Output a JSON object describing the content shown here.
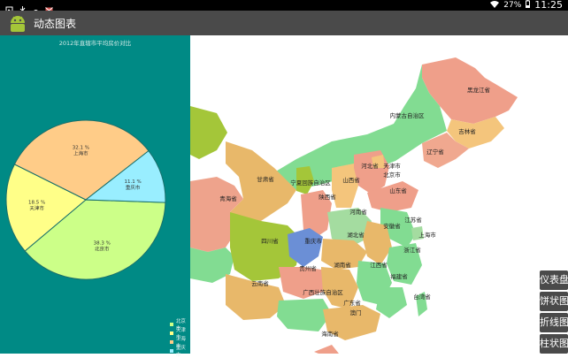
{
  "status_bar": {
    "battery": "27%",
    "time": "11:25",
    "icons": [
      "notification-image-icon",
      "usb-icon",
      "android-debug-icon",
      "mail-icon",
      "wifi-icon",
      "battery-icon"
    ]
  },
  "app_bar": {
    "title": "动态图表",
    "icon": "android-icon"
  },
  "chart_data": {
    "type": "pie",
    "title": "2012年直辖市平均房价对比",
    "slices": [
      {
        "label": "北京市",
        "percent_text": "38.3 %",
        "value": 38.3,
        "color": "#ccff88"
      },
      {
        "label": "天津市",
        "percent_text": "18.5 %",
        "value": 18.5,
        "color": "#ffff88"
      },
      {
        "label": "上海市",
        "percent_text": "32.1 %",
        "value": 32.1,
        "color": "#ffcc88"
      },
      {
        "label": "重庆市",
        "percent_text": "11.1 %",
        "value": 11.1,
        "color": "#99eeff"
      }
    ],
    "legend": [
      {
        "label": "北京市",
        "color": "#ccff88"
      },
      {
        "label": "天津市",
        "color": "#ffff88"
      },
      {
        "label": "上海市",
        "color": "#ffcc88"
      },
      {
        "label": "重庆市",
        "color": "#99eeff"
      }
    ],
    "legend_position": "bottom-right"
  },
  "map": {
    "highlighted_region": "重庆市",
    "labels": [
      "黑龙江省",
      "吉林省",
      "内蒙古自治区",
      "辽宁省",
      "河北省",
      "天津市",
      "北京市",
      "甘肃省",
      "宁夏回族自治区",
      "山西省",
      "山东省",
      "青海省",
      "陕西省",
      "河南省",
      "江苏省",
      "四川省",
      "重庆市",
      "湖北省",
      "安徽省",
      "上海市",
      "浙江省",
      "贵州省",
      "湖南省",
      "江西省",
      "云南省",
      "福建省",
      "广西壮族自治区",
      "广东省",
      "台湾省",
      "澳门",
      "海南省"
    ]
  },
  "side_buttons": [
    "仪表盘",
    "饼状图",
    "折线图",
    "柱状图"
  ],
  "colors": {
    "panel": "#008a85",
    "bar": "#4a4a4a",
    "accent": "#6b8fd6"
  }
}
